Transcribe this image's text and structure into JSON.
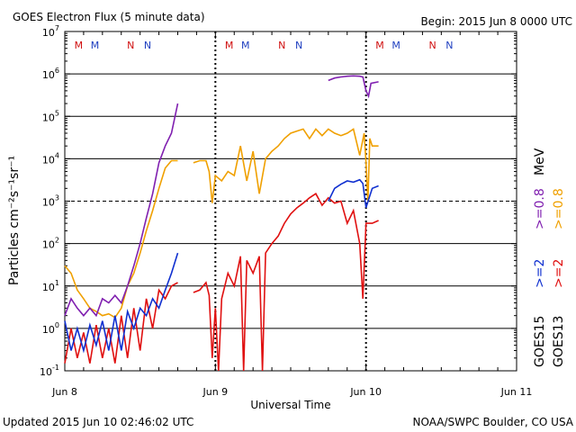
{
  "chart_data": {
    "type": "line",
    "title": "GOES Electron Flux (5 minute data)",
    "begin_label": "Begin: 2015 Jun 8 0000 UTC",
    "xlabel": "Universal Time",
    "ylabel": "Particles cm⁻²s⁻¹sr⁻¹",
    "y_scale": "log",
    "ylim": [
      0.1,
      10000000
    ],
    "y_ticks": [
      {
        "base": "10",
        "exp": "-1",
        "value": 0.1
      },
      {
        "base": "10",
        "exp": "0",
        "value": 1
      },
      {
        "base": "10",
        "exp": "1",
        "value": 10
      },
      {
        "base": "10",
        "exp": "2",
        "value": 100
      },
      {
        "base": "10",
        "exp": "3",
        "value": 1000
      },
      {
        "base": "10",
        "exp": "4",
        "value": 10000
      },
      {
        "base": "10",
        "exp": "5",
        "value": 100000
      },
      {
        "base": "10",
        "exp": "6",
        "value": 1000000
      },
      {
        "base": "10",
        "exp": "7",
        "value": 10000000
      }
    ],
    "x_unit": "hours since 2015 Jun 8 0000 UTC",
    "xlim": [
      0,
      72
    ],
    "x_ticks": [
      {
        "label": "Jun 8",
        "hour": 0
      },
      {
        "label": "Jun 9",
        "hour": 24
      },
      {
        "label": "Jun 10",
        "hour": 48
      },
      {
        "label": "Jun 11",
        "hour": 72
      }
    ],
    "threshold_line": 1000,
    "midnight_markers": [
      24,
      48
    ],
    "mn_markers": [
      {
        "label": "M",
        "hour": 2.2,
        "color": "#d01010"
      },
      {
        "label": "M",
        "hour": 4.8,
        "color": "#2040c0"
      },
      {
        "label": "N",
        "hour": 10.5,
        "color": "#d01010"
      },
      {
        "label": "N",
        "hour": 13.2,
        "color": "#2040c0"
      },
      {
        "label": "M",
        "hour": 26.2,
        "color": "#d01010"
      },
      {
        "label": "M",
        "hour": 28.8,
        "color": "#2040c0"
      },
      {
        "label": "N",
        "hour": 34.6,
        "color": "#d01010"
      },
      {
        "label": "N",
        "hour": 37.3,
        "color": "#2040c0"
      },
      {
        "label": "M",
        "hour": 50.2,
        "color": "#d01010"
      },
      {
        "label": "M",
        "hour": 52.8,
        "color": "#2040c0"
      },
      {
        "label": "N",
        "hour": 58.6,
        "color": "#d01010"
      },
      {
        "label": "N",
        "hour": 61.3,
        "color": "#2040c0"
      }
    ],
    "series": [
      {
        "name": "GOES13 >=0.8 MeV",
        "color": "#f0a000",
        "points": [
          [
            0,
            30
          ],
          [
            1,
            20
          ],
          [
            2,
            8
          ],
          [
            3,
            5
          ],
          [
            4,
            3
          ],
          [
            5,
            2.5
          ],
          [
            6,
            2.0
          ],
          [
            7,
            2.2
          ],
          [
            8,
            1.8
          ],
          [
            9,
            3
          ],
          [
            10,
            10
          ],
          [
            11,
            20
          ],
          [
            12,
            60
          ],
          [
            13,
            200
          ],
          [
            14,
            600
          ],
          [
            15,
            2000
          ],
          [
            16,
            6000
          ],
          [
            17,
            9000
          ],
          [
            18,
            9000
          ],
          null,
          [
            20.5,
            8000
          ],
          [
            21.5,
            9000
          ],
          [
            22.5,
            9000
          ],
          [
            23,
            5000
          ],
          [
            23.5,
            900
          ],
          [
            24,
            4000
          ],
          [
            25,
            3000
          ],
          [
            26,
            5000
          ],
          [
            27,
            4000
          ],
          [
            28,
            20000
          ],
          [
            29,
            3000
          ],
          [
            30,
            15000
          ],
          [
            31,
            1500
          ],
          [
            32,
            10000
          ],
          [
            33,
            15000
          ],
          [
            34,
            20000
          ],
          [
            35,
            30000
          ],
          [
            36,
            40000
          ],
          [
            37,
            45000
          ],
          [
            38,
            50000
          ],
          [
            39,
            30000
          ],
          [
            40,
            50000
          ],
          [
            41,
            35000
          ],
          [
            42,
            50000
          ],
          [
            43,
            40000
          ],
          [
            44,
            35000
          ],
          [
            45,
            40000
          ],
          [
            46,
            50000
          ],
          [
            47,
            12000
          ],
          [
            47.7,
            40000
          ],
          [
            48,
            8000
          ],
          [
            48.3,
            1000
          ],
          [
            48.6,
            30000
          ],
          [
            49,
            20000
          ],
          [
            50,
            20000
          ]
        ]
      },
      {
        "name": "GOES15 >=0.8 MeV",
        "color": "#8020b0",
        "points": [
          [
            0,
            2
          ],
          [
            1,
            5
          ],
          [
            2,
            3
          ],
          [
            3,
            2
          ],
          [
            4,
            3
          ],
          [
            5,
            2
          ],
          [
            6,
            5
          ],
          [
            7,
            4
          ],
          [
            8,
            6
          ],
          [
            9,
            4
          ],
          [
            10,
            10
          ],
          [
            11,
            30
          ],
          [
            12,
            100
          ],
          [
            13,
            400
          ],
          [
            14,
            1500
          ],
          [
            15,
            8000
          ],
          [
            16,
            20000
          ],
          [
            17,
            40000
          ],
          [
            18,
            200000
          ],
          null,
          [
            42,
            700000
          ],
          [
            43,
            800000
          ],
          [
            44,
            850000
          ],
          [
            45,
            880000
          ],
          [
            46,
            900000
          ],
          [
            47,
            880000
          ],
          [
            47.5,
            850000
          ],
          [
            48,
            400000
          ],
          [
            48.4,
            300000
          ],
          [
            48.8,
            600000
          ],
          [
            50,
            650000
          ]
        ]
      },
      {
        "name": "GOES13 >=2 MeV",
        "color": "#e01010",
        "points": [
          [
            0,
            0.15
          ],
          [
            1,
            1
          ],
          [
            2,
            0.2
          ],
          [
            3,
            0.8
          ],
          [
            4,
            0.15
          ],
          [
            5,
            1.2
          ],
          [
            6,
            0.2
          ],
          [
            7,
            1
          ],
          [
            8,
            0.15
          ],
          [
            9,
            2
          ],
          [
            10,
            0.2
          ],
          [
            11,
            3
          ],
          [
            12,
            0.3
          ],
          [
            13,
            5
          ],
          [
            14,
            1
          ],
          [
            15,
            8
          ],
          [
            16,
            5
          ],
          [
            17,
            10
          ],
          [
            18,
            12
          ],
          null,
          [
            20.5,
            7
          ],
          [
            21.5,
            8
          ],
          [
            22.5,
            12
          ],
          [
            23,
            6
          ],
          [
            23.5,
            0.2
          ],
          [
            24,
            3
          ],
          [
            24.5,
            0.1
          ],
          [
            25,
            5
          ],
          [
            26,
            20
          ],
          [
            27,
            10
          ],
          [
            28,
            50
          ],
          [
            28.5,
            0.1
          ],
          [
            29,
            40
          ],
          [
            30,
            20
          ],
          [
            31,
            50
          ],
          [
            31.5,
            0.1
          ],
          [
            32,
            60
          ],
          [
            33,
            100
          ],
          [
            34,
            150
          ],
          [
            35,
            300
          ],
          [
            36,
            500
          ],
          [
            37,
            700
          ],
          [
            38,
            900
          ],
          [
            39,
            1200
          ],
          [
            40,
            1500
          ],
          [
            41,
            800
          ],
          [
            42,
            1200
          ],
          [
            43,
            900
          ],
          [
            44,
            1000
          ],
          [
            45,
            300
          ],
          [
            46,
            600
          ],
          [
            47,
            100
          ],
          [
            47.5,
            5
          ],
          [
            48,
            300
          ],
          [
            49,
            300
          ],
          [
            50,
            350
          ]
        ]
      },
      {
        "name": "GOES15 >=2 MeV",
        "color": "#1030d0",
        "points": [
          [
            0,
            1.5
          ],
          [
            1,
            0.3
          ],
          [
            2,
            1
          ],
          [
            3,
            0.3
          ],
          [
            4,
            1.2
          ],
          [
            5,
            0.4
          ],
          [
            6,
            1.5
          ],
          [
            7,
            0.3
          ],
          [
            8,
            2
          ],
          [
            9,
            0.3
          ],
          [
            10,
            2.5
          ],
          [
            11,
            1
          ],
          [
            12,
            3
          ],
          [
            13,
            2
          ],
          [
            14,
            5
          ],
          [
            15,
            3
          ],
          [
            16,
            8
          ],
          [
            17,
            20
          ],
          [
            18,
            60
          ],
          null,
          [
            42,
            1000
          ],
          [
            43,
            2000
          ],
          [
            44,
            2500
          ],
          [
            45,
            3000
          ],
          [
            46,
            2800
          ],
          [
            47,
            3200
          ],
          [
            47.5,
            2600
          ],
          [
            48,
            700
          ],
          [
            48.5,
            1200
          ],
          [
            49,
            2000
          ],
          [
            50,
            2300
          ]
        ]
      }
    ],
    "legend": {
      "right_top": [
        {
          "text": ">=0.8",
          "color": "#f0a000"
        },
        {
          "text": ">=0.8",
          "color": "#8020b0"
        }
      ],
      "mev_label": "MeV",
      "right_mid": [
        {
          "text": ">=2",
          "color": "#e01010"
        },
        {
          "text": ">=2",
          "color": "#1030d0"
        }
      ],
      "right_bottom": [
        {
          "text": "GOES13",
          "color": "#000000"
        },
        {
          "text": "GOES15",
          "color": "#000000"
        }
      ]
    }
  },
  "footer": {
    "updated": "Updated 2015 Jun 10 02:46:02 UTC",
    "credit": "NOAA/SWPC Boulder, CO USA"
  }
}
